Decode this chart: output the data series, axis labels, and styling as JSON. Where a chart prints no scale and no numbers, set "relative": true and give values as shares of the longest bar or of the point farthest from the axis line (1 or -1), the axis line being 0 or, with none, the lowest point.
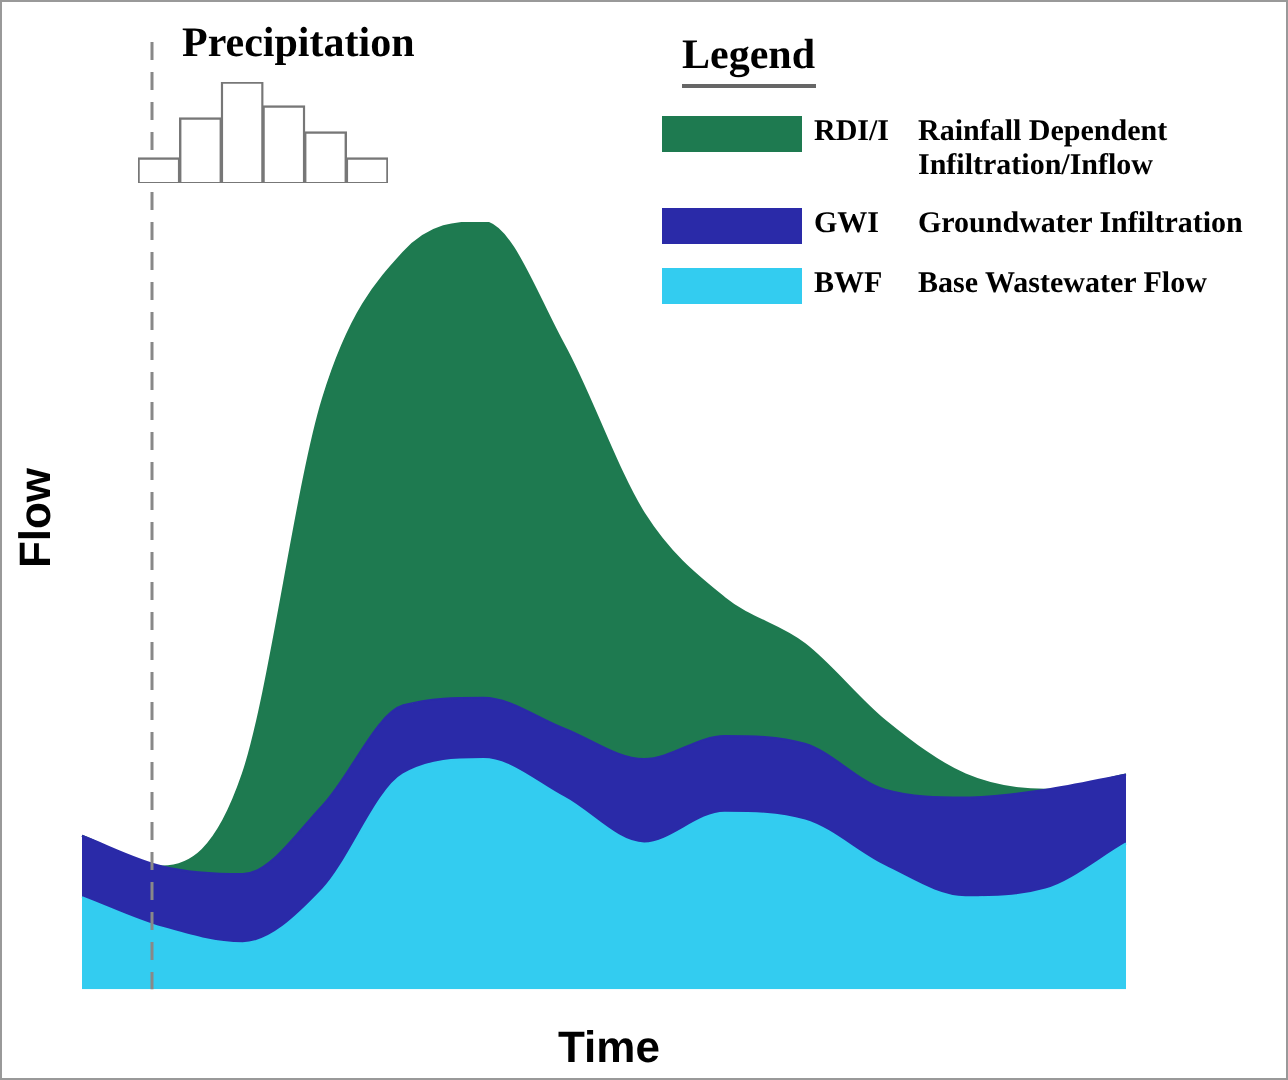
{
  "chart_data": [
    {
      "type": "area",
      "stacked": true,
      "relative": true,
      "xlabel": "Time",
      "ylabel": "Flow",
      "legend": "top right",
      "legend_title": "Legend",
      "categories": [
        null,
        null,
        null,
        null,
        null,
        null,
        null,
        null,
        null,
        null,
        null,
        null,
        null,
        null
      ],
      "series": [
        {
          "name": "BWF Base Wastewater Flow",
          "color": "#33ccf0",
          "values": [
            0.12,
            0.08,
            0.06,
            0.13,
            0.28,
            0.3,
            0.25,
            0.19,
            0.23,
            0.22,
            0.16,
            0.12,
            0.13,
            0.19
          ]
        },
        {
          "name": "GWI Groundwater Infiltration",
          "color": "#2a2aa8",
          "values": [
            0.08,
            0.08,
            0.09,
            0.11,
            0.09,
            0.08,
            0.09,
            0.11,
            0.1,
            0.1,
            0.1,
            0.13,
            0.13,
            0.09
          ]
        },
        {
          "name": "RDI/I Rainfall Dependent Infiltration/Inflow",
          "color": "#1e7a50",
          "values": [
            0,
            0,
            0.13,
            0.53,
            0.59,
            0.62,
            0.5,
            0.32,
            0.18,
            0.13,
            0.09,
            0.03,
            0,
            0
          ]
        }
      ]
    },
    {
      "type": "bar",
      "relative": true,
      "title": "Precipitation",
      "color": "#ffffff",
      "categories": [
        null,
        null,
        null,
        null,
        null,
        null
      ],
      "values": [
        0.24,
        0.64,
        1,
        0.76,
        0.5,
        0.24
      ]
    }
  ]
}
